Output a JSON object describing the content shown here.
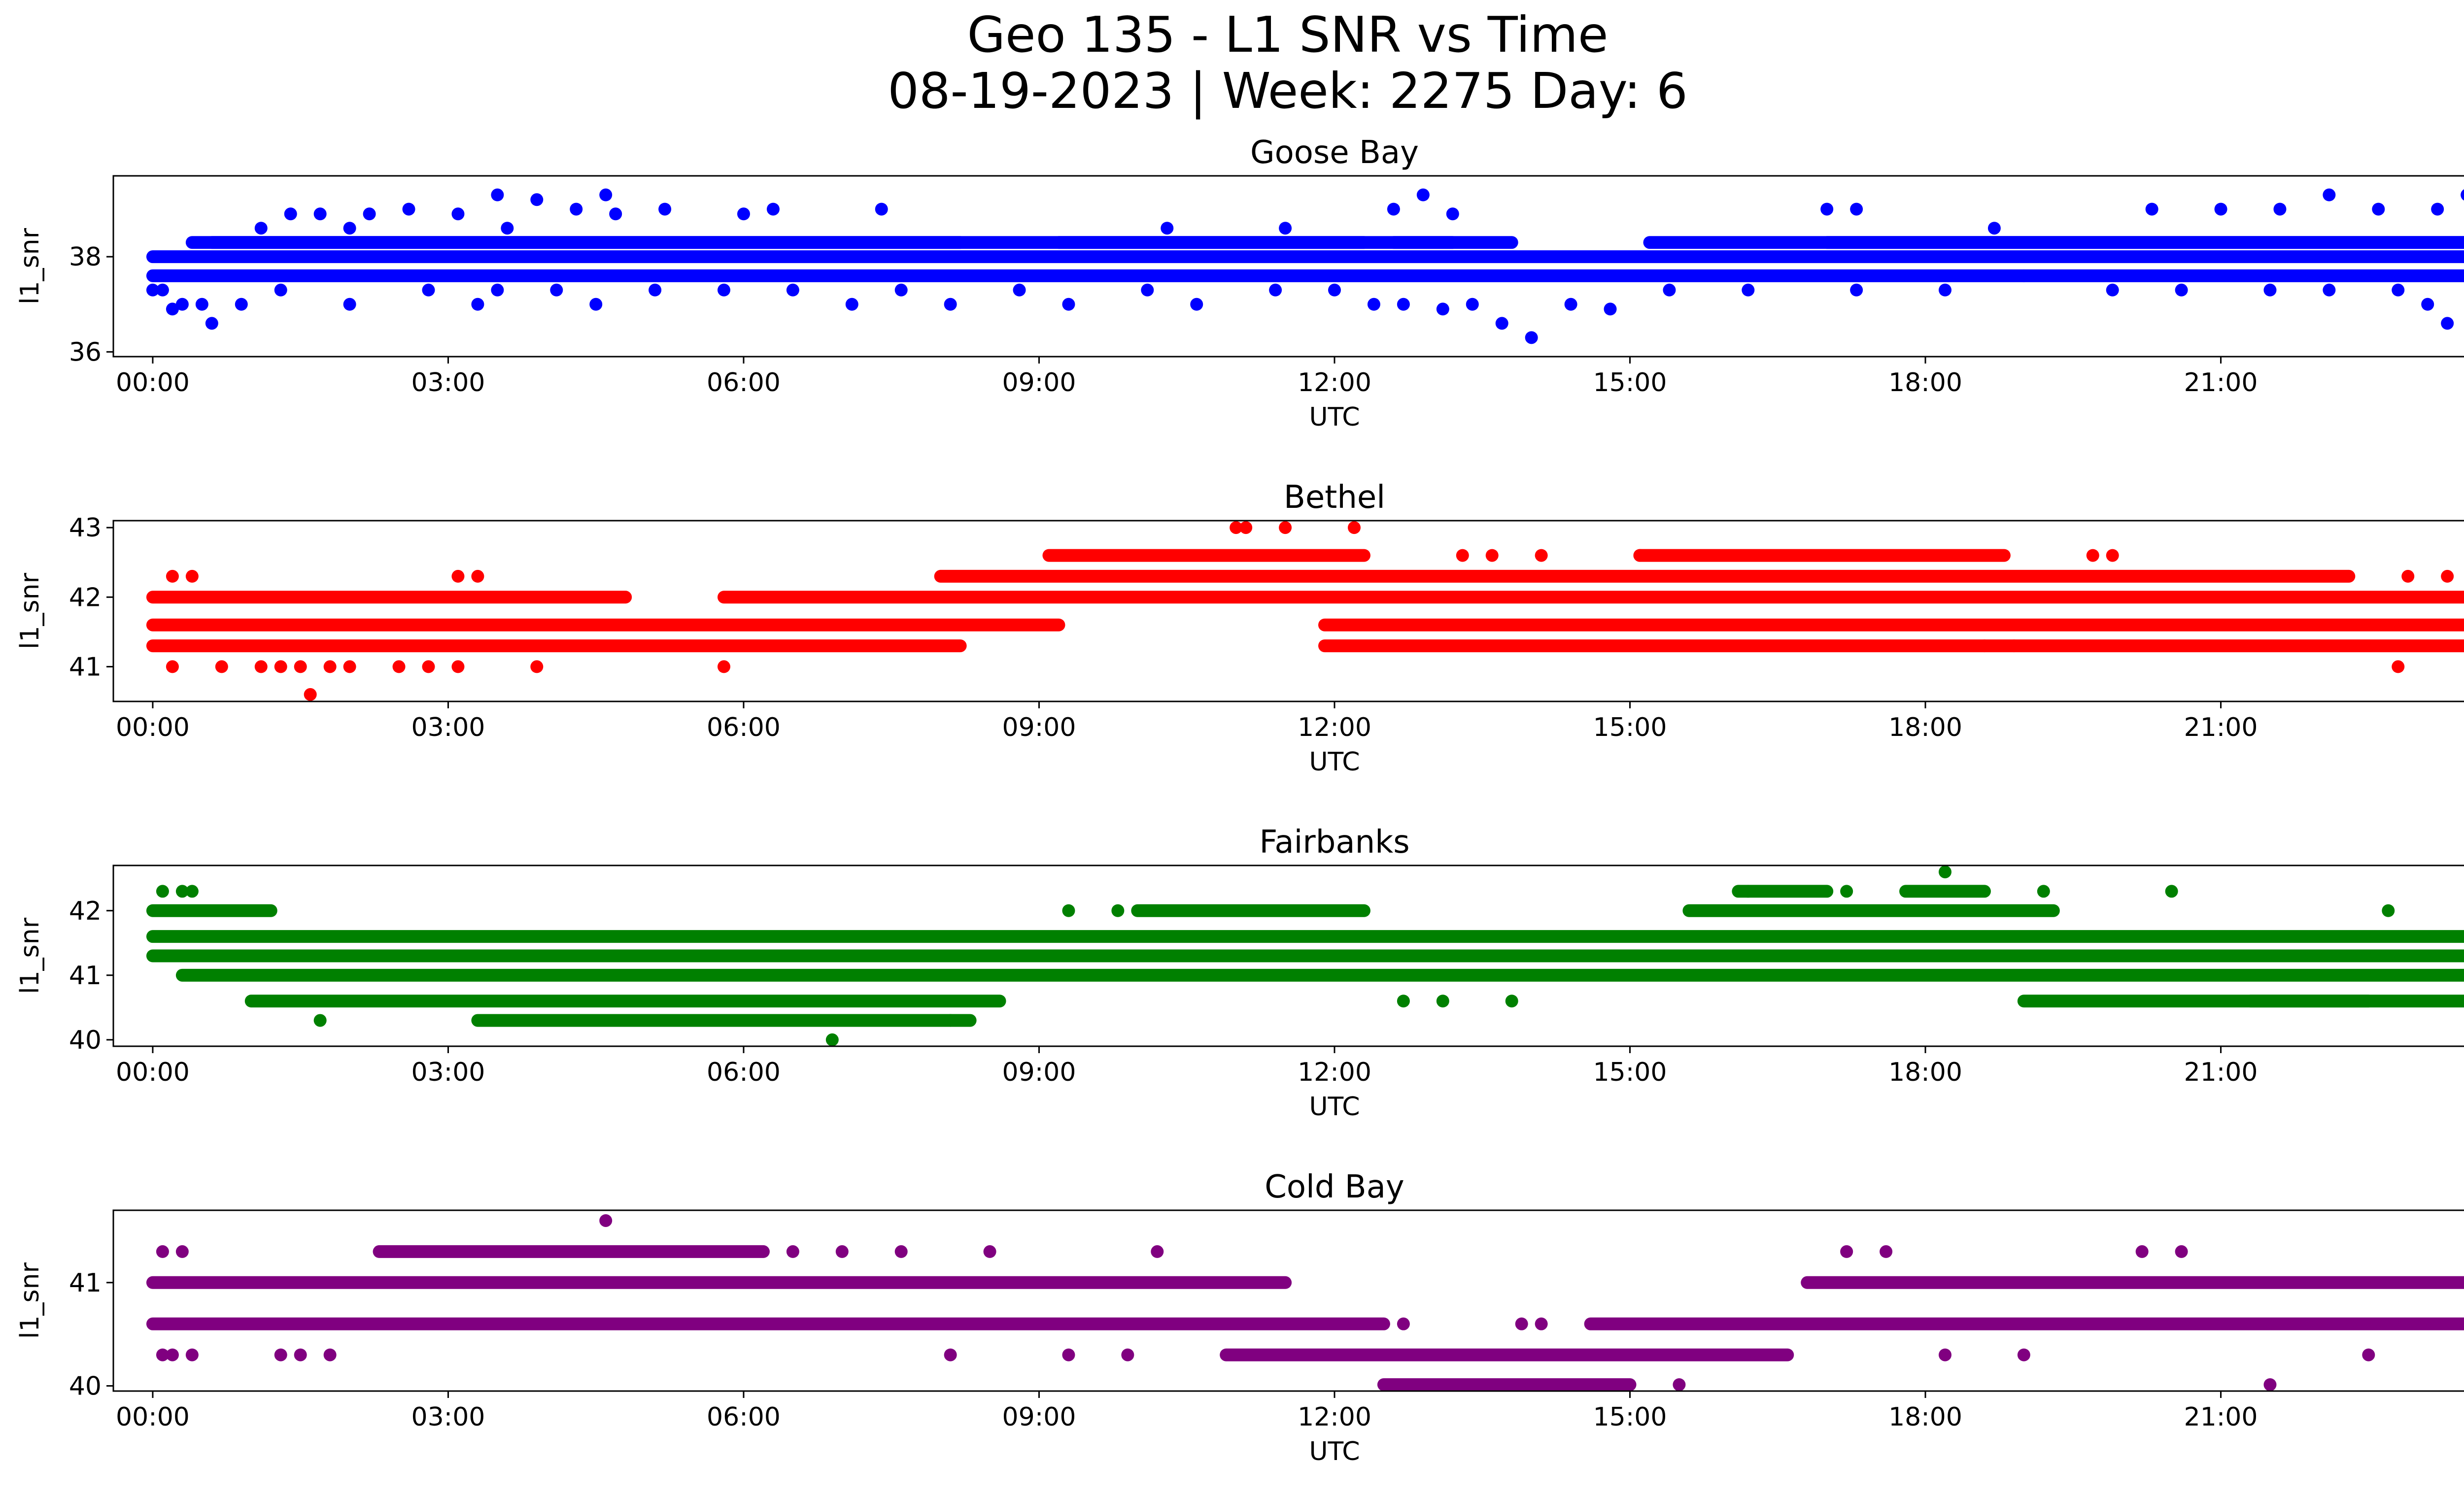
{
  "figure": {
    "title_line1": "Geo 135 - L1 SNR vs Time",
    "title_line2": "08-19-2023 | Week: 2275 Day: 6"
  },
  "chart_data": [
    {
      "type": "scatter",
      "title": "Goose Bay",
      "xlabel": "UTC",
      "ylabel": "l1_snr",
      "color": "#0000ff",
      "xlim": [
        "23:36",
        "24:24"
      ],
      "ylim": [
        35.9,
        39.7
      ],
      "xticks": [
        "00:00",
        "03:00",
        "06:00",
        "09:00",
        "12:00",
        "15:00",
        "18:00",
        "21:00",
        "00:00"
      ],
      "yticks": [
        36,
        38
      ],
      "levels": [
        37.6,
        38.0,
        38.3
      ],
      "bands": [
        [
          0,
          24,
          0
        ],
        [
          0,
          24,
          1
        ],
        [
          0.6,
          8.2,
          2
        ],
        [
          9.2,
          12.3,
          2
        ],
        [
          12.6,
          13.2,
          2
        ],
        [
          17.0,
          24,
          2
        ],
        [
          0.4,
          13.8,
          2
        ],
        [
          15.2,
          24,
          2
        ]
      ],
      "series": [
        {
          "x": [
            0.0,
            0.1,
            0.3,
            0.5,
            0.9,
            0.2,
            0.6,
            1.3,
            2.0,
            2.8,
            3.3,
            3.5,
            4.1,
            4.5,
            5.1,
            5.8,
            6.5,
            7.1,
            7.6,
            8.1,
            8.8,
            9.3,
            10.1,
            10.6,
            11.4,
            12.0,
            12.4,
            12.7,
            13.1,
            13.4,
            13.7,
            14.0,
            14.4,
            14.8,
            15.4,
            16.2,
            17.3,
            18.2,
            19.0,
            19.9,
            20.6,
            21.5,
            22.1,
            22.8,
            23.1,
            23.3,
            23.6,
            23.9,
            24.0
          ],
          "y": [
            37.3,
            37.3,
            37.0,
            37.0,
            37.0,
            36.9,
            36.6,
            37.3,
            37.0,
            37.3,
            37.0,
            37.3,
            37.3,
            37.0,
            37.3,
            37.3,
            37.3,
            37.0,
            37.3,
            37.0,
            37.3,
            37.0,
            37.3,
            37.0,
            37.3,
            37.3,
            37.0,
            37.0,
            36.9,
            37.0,
            36.6,
            36.3,
            37.0,
            36.9,
            37.3,
            37.3,
            37.3,
            37.3,
            37.6,
            37.3,
            37.3,
            37.3,
            37.3,
            37.3,
            37.0,
            36.6,
            36.3,
            36.0,
            37.0
          ]
        },
        {
          "x": [
            1.1,
            1.4,
            1.7,
            2.0,
            2.2,
            2.6,
            3.1,
            3.5,
            3.6,
            3.9,
            4.3,
            4.6,
            4.7,
            5.2,
            6.0,
            6.3,
            7.4,
            10.3,
            11.5,
            12.6,
            12.9,
            13.2,
            17.0,
            17.3,
            18.7,
            20.3,
            21.0,
            21.6,
            22.1,
            22.6,
            23.2,
            23.5,
            23.7,
            23.9
          ],
          "y": [
            38.6,
            38.9,
            38.9,
            38.6,
            38.9,
            39.0,
            38.9,
            39.3,
            38.6,
            39.2,
            39.0,
            39.3,
            38.9,
            39.0,
            38.9,
            39.0,
            39.0,
            38.6,
            38.6,
            39.0,
            39.3,
            38.9,
            39.0,
            39.0,
            38.6,
            39.0,
            39.0,
            39.0,
            39.3,
            39.0,
            39.0,
            39.3,
            39.6,
            39.6
          ]
        }
      ]
    },
    {
      "type": "scatter",
      "title": "Bethel",
      "xlabel": "UTC",
      "ylabel": "l1_snr",
      "color": "#ff0000",
      "xlim": [
        "23:36",
        "24:24"
      ],
      "ylim": [
        40.5,
        43.1
      ],
      "xticks": [
        "00:00",
        "03:00",
        "06:00",
        "09:00",
        "12:00",
        "15:00",
        "18:00",
        "21:00",
        "00:00"
      ],
      "yticks": [
        41,
        42,
        43
      ],
      "levels": [
        41.3,
        41.6,
        42.0,
        42.3,
        42.6
      ],
      "bands": [
        [
          0,
          8.2,
          0
        ],
        [
          0,
          9.2,
          1
        ],
        [
          0,
          4.8,
          2
        ],
        [
          5.8,
          24,
          2
        ],
        [
          8.0,
          22.3,
          3
        ],
        [
          9.1,
          12.3,
          4
        ],
        [
          15.1,
          18.8,
          4
        ],
        [
          11.9,
          24,
          0
        ],
        [
          11.9,
          24,
          1
        ]
      ],
      "series": [
        {
          "x": [
            0.2,
            0.4,
            3.1,
            3.3,
            11.0,
            11.1,
            11.5,
            12.2,
            13.3,
            13.6,
            14.1,
            15.1,
            19.7,
            19.9,
            22.9,
            23.3,
            23.6,
            23.8,
            24.0
          ],
          "y": [
            42.3,
            42.3,
            42.3,
            42.3,
            43.0,
            43.0,
            43.0,
            43.0,
            42.6,
            42.6,
            42.6,
            42.6,
            42.6,
            42.6,
            42.3,
            42.3,
            42.3,
            42.3,
            42.3
          ]
        },
        {
          "x": [
            0.2,
            0.7,
            1.1,
            1.3,
            1.5,
            1.6,
            1.8,
            2.0,
            2.5,
            2.8,
            3.1,
            3.9,
            5.8,
            18.6,
            18.9,
            22.8
          ],
          "y": [
            41.0,
            41.0,
            41.0,
            41.0,
            41.0,
            40.6,
            41.0,
            41.0,
            41.0,
            41.0,
            41.0,
            41.0,
            41.0,
            41.3,
            41.3,
            41.0
          ]
        }
      ]
    },
    {
      "type": "scatter",
      "title": "Fairbanks",
      "xlabel": "UTC",
      "ylabel": "l1_snr",
      "color": "#008000",
      "xlim": [
        "23:36",
        "24:24"
      ],
      "ylim": [
        39.9,
        42.7
      ],
      "xticks": [
        "00:00",
        "03:00",
        "06:00",
        "09:00",
        "12:00",
        "15:00",
        "18:00",
        "21:00",
        "00:00"
      ],
      "yticks": [
        40,
        41,
        42
      ],
      "levels": [
        40.3,
        40.6,
        41.0,
        41.3,
        41.6,
        42.0,
        42.3
      ],
      "bands": [
        [
          0,
          1.2,
          5
        ],
        [
          0,
          24,
          4
        ],
        [
          0,
          24,
          3
        ],
        [
          0.3,
          24,
          2
        ],
        [
          1.0,
          8.6,
          1
        ],
        [
          3.3,
          8.3,
          0
        ],
        [
          10.0,
          12.3,
          5
        ],
        [
          15.6,
          19.3,
          5
        ],
        [
          16.1,
          17.0,
          6
        ],
        [
          17.8,
          18.6,
          6
        ],
        [
          21.3,
          24,
          1
        ],
        [
          19.0,
          22.5,
          1
        ]
      ],
      "series": [
        {
          "x": [
            0.1,
            0.3,
            0.4,
            1.7,
            6.9,
            8.1,
            9.3,
            9.8,
            12.7,
            13.1,
            13.8,
            16.2,
            17.2,
            18.2,
            19.2,
            20.5,
            22.7,
            23.8,
            23.9
          ],
          "y": [
            42.3,
            42.3,
            42.3,
            40.3,
            40.0,
            40.3,
            42.0,
            42.0,
            40.6,
            40.6,
            40.6,
            42.3,
            42.3,
            42.6,
            42.3,
            42.3,
            42.0,
            40.3,
            42.0
          ]
        }
      ]
    },
    {
      "type": "scatter",
      "title": "Cold Bay",
      "xlabel": "UTC",
      "ylabel": "l1_snr",
      "color": "#800080",
      "xlim": [
        "23:36",
        "24:24"
      ],
      "ylim": [
        39.95,
        41.7
      ],
      "xticks": [
        "00:00",
        "03:00",
        "06:00",
        "09:00",
        "12:00",
        "15:00",
        "18:00",
        "21:00",
        "00:00"
      ],
      "yticks": [
        40,
        41
      ],
      "levels": [
        40.0,
        40.3,
        40.6,
        41.0,
        41.3
      ],
      "bands": [
        [
          0,
          11.5,
          3
        ],
        [
          16.8,
          24,
          3
        ],
        [
          0,
          12.5,
          2
        ],
        [
          14.6,
          24,
          2
        ],
        [
          10.9,
          16.6,
          1
        ],
        [
          12.5,
          15.0,
          0
        ],
        [
          2.3,
          6.2,
          4
        ]
      ],
      "series": [
        {
          "x": [
            0.1,
            0.3,
            0.1,
            0.2,
            0.4,
            1.3,
            1.5,
            1.8,
            4.6,
            6.5,
            7.0,
            7.6,
            8.1,
            8.5,
            9.3,
            9.9,
            10.2,
            12.7,
            13.9,
            14.1,
            15.5,
            17.2,
            17.6,
            18.2,
            19.0,
            20.2,
            20.6,
            21.5,
            22.5,
            23.7
          ],
          "y": [
            41.3,
            41.3,
            40.3,
            40.3,
            40.3,
            40.3,
            40.3,
            40.3,
            41.6,
            41.3,
            41.3,
            41.3,
            40.3,
            41.3,
            40.3,
            40.3,
            41.3,
            40.6,
            40.6,
            40.6,
            40.0,
            41.3,
            41.3,
            40.3,
            40.3,
            41.3,
            41.3,
            40.0,
            40.3,
            41.3
          ]
        }
      ]
    }
  ]
}
